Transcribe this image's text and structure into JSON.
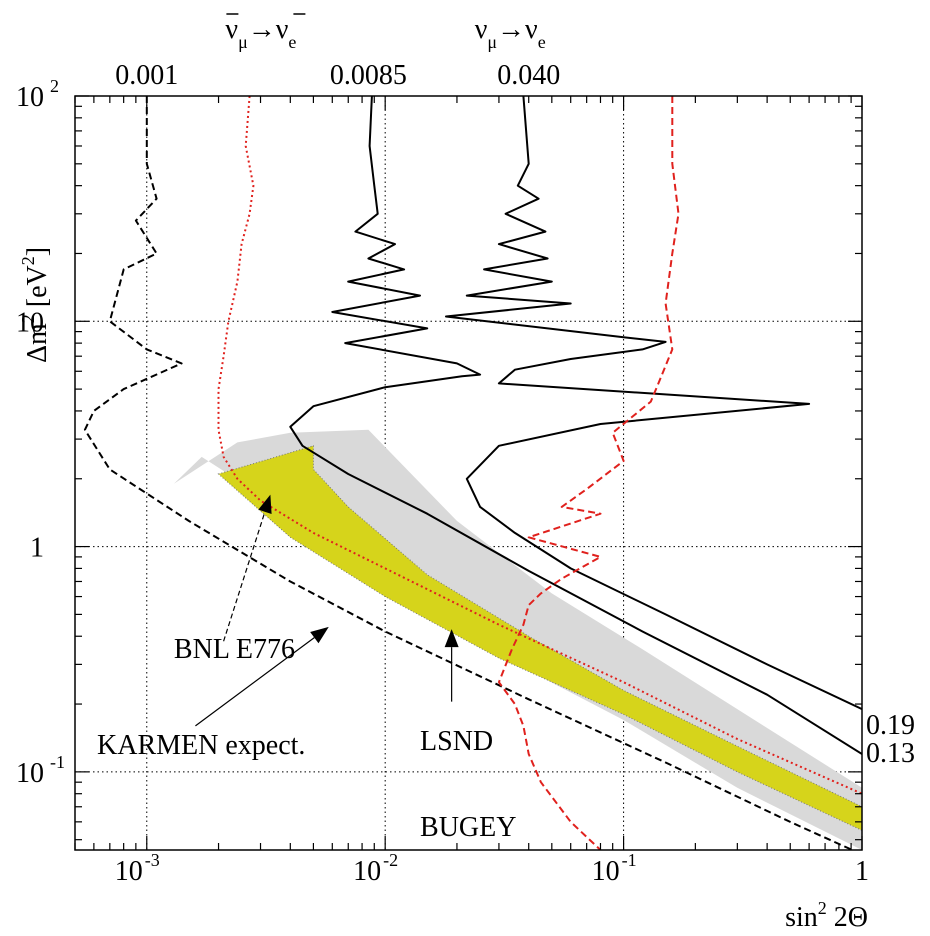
{
  "chart_data": {
    "type": "line",
    "xscale": "log",
    "yscale": "log",
    "xlim": [
      0.0005,
      1
    ],
    "ylim": [
      0.045,
      100
    ],
    "grid": true,
    "xlabel": {
      "base": "sin",
      "exp": "2",
      "rest": " 2Θ"
    },
    "ylabel": {
      "pre": "Δm",
      "exp": "2",
      "mid": " [eV",
      "exp2": "2",
      "post": "]"
    },
    "x_ticks": [
      {
        "value": 0.001,
        "base": "10",
        "exp": "-3"
      },
      {
        "value": 0.01,
        "base": "10",
        "exp": "-2"
      },
      {
        "value": 0.1,
        "base": "10",
        "exp": "-1"
      },
      {
        "value": 1,
        "base": "1",
        "exp": ""
      }
    ],
    "y_ticks": [
      {
        "value": 100,
        "base": "10",
        "exp": "2"
      },
      {
        "value": 10,
        "base": "10",
        "exp": ""
      },
      {
        "value": 1,
        "base": "1",
        "exp": ""
      },
      {
        "value": 0.1,
        "base": "10",
        "exp": "-1"
      }
    ],
    "top_labels": {
      "values": [
        {
          "x": 0.001,
          "text": "0.001"
        },
        {
          "x": 0.0085,
          "text": "0.0085"
        },
        {
          "x": 0.04,
          "text": "0.040"
        }
      ],
      "channels": [
        {
          "x": 0.0036,
          "nu": "ν",
          "sub1": "μ",
          "arrow": "→",
          "sub2": "e",
          "bar": true
        },
        {
          "x": 0.04,
          "nu": "ν",
          "sub1": "μ",
          "arrow": "→",
          "sub2": "e",
          "bar": false
        }
      ]
    },
    "right_labels": [
      {
        "y": 0.16,
        "text": "0.19"
      },
      {
        "y": 0.12,
        "text": "0.13"
      }
    ],
    "annotations": [
      {
        "text": "BNL E776",
        "x": 0.0013,
        "y": 0.32
      },
      {
        "text": "KARMEN expect.",
        "x": 0.0005,
        "y": 0.12
      },
      {
        "text": "LSND",
        "x": 0.014,
        "y": 0.125
      },
      {
        "text": "BUGEY",
        "x": 0.014,
        "y": 0.052
      }
    ],
    "series": [
      {
        "name": "LSND",
        "style": "region-90",
        "color": "#d9d9d9",
        "x": [
          0.0013,
          0.0024,
          0.004,
          0.0085,
          0.02,
          0.05,
          0.12,
          0.3,
          1,
          1,
          0.3,
          0.1,
          0.03,
          0.01,
          0.004,
          0.0017
        ],
        "y": [
          1.9,
          2.9,
          3.2,
          3.3,
          1.3,
          0.62,
          0.35,
          0.19,
          0.085,
          0.045,
          0.085,
          0.17,
          0.33,
          0.7,
          1.4,
          2.5
        ]
      },
      {
        "name": "LSND",
        "style": "region-99",
        "color": "#d6d41b",
        "x": [
          0.002,
          0.005,
          0.005,
          0.007,
          0.015,
          0.04,
          0.1,
          0.3,
          1,
          1,
          0.3,
          0.1,
          0.03,
          0.01,
          0.004
        ],
        "y": [
          2.1,
          2.8,
          2.2,
          1.5,
          0.75,
          0.4,
          0.23,
          0.13,
          0.07,
          0.055,
          0.1,
          0.18,
          0.32,
          0.6,
          1.1
        ]
      },
      {
        "name": "BNL E776",
        "style": "dotted",
        "color": "#e0211d",
        "x": [
          0.0027,
          0.0026,
          0.0028,
          0.0027,
          0.0025,
          0.0024,
          0.0022,
          0.0021,
          0.002,
          0.002,
          0.0021,
          0.0024,
          0.003,
          0.005,
          0.01,
          0.03,
          0.1,
          0.3,
          1
        ],
        "y": [
          100,
          60,
          40,
          30,
          22,
          15,
          10,
          7,
          5,
          3.3,
          2.5,
          2,
          1.6,
          1.15,
          0.8,
          0.45,
          0.25,
          0.14,
          0.08
        ]
      },
      {
        "name": "KARMEN expect.",
        "style": "dashed",
        "color": "#000000",
        "x": [
          0.001,
          0.001,
          0.0011,
          0.0009,
          0.0011,
          0.0008,
          0.0007,
          0.001,
          0.0014,
          0.0008,
          0.0006,
          0.00055,
          0.0007,
          0.0015,
          0.004,
          0.01,
          0.04,
          0.15,
          0.5,
          1
        ],
        "y": [
          100,
          50,
          35,
          28,
          20,
          17,
          10,
          7.5,
          6.5,
          5,
          4,
          3.3,
          2.2,
          1.3,
          0.7,
          0.42,
          0.21,
          0.11,
          0.06,
          0.043
        ]
      },
      {
        "name": "0.0085",
        "style": "solid",
        "color": "#000000",
        "x": [
          0.0088,
          0.0086,
          0.009,
          0.0093,
          0.0075,
          0.011,
          0.0085,
          0.012,
          0.007,
          0.014,
          0.006,
          0.015,
          0.0068,
          0.02,
          0.025,
          0.021,
          0.01,
          0.005,
          0.004,
          0.0045,
          0.007,
          0.015,
          0.04,
          0.12,
          0.4,
          1
        ],
        "y": [
          100,
          60,
          40,
          30,
          25,
          22,
          19,
          17,
          15,
          13,
          11,
          9.3,
          8,
          6.5,
          5.8,
          5.7,
          5.1,
          4.2,
          3.4,
          2.8,
          2.1,
          1.4,
          0.78,
          0.42,
          0.22,
          0.12
        ]
      },
      {
        "name": "0.040",
        "style": "solid",
        "color": "#000000",
        "x": [
          0.038,
          0.04,
          0.036,
          0.044,
          0.032,
          0.047,
          0.03,
          0.048,
          0.026,
          0.05,
          0.022,
          0.06,
          0.018,
          0.1,
          0.15,
          0.12,
          0.06,
          0.035,
          0.03,
          0.6,
          0.08,
          0.03,
          0.022,
          0.025,
          0.035,
          0.06,
          0.15,
          0.4,
          1
        ],
        "y": [
          100,
          50,
          40,
          35,
          30,
          25,
          22,
          19,
          17,
          15,
          13,
          12,
          10.5,
          8.5,
          8.1,
          7.5,
          6.8,
          6.1,
          5.3,
          4.3,
          3.5,
          2.8,
          2,
          1.5,
          1.15,
          0.8,
          0.5,
          0.3,
          0.19
        ]
      },
      {
        "name": "BUGEY",
        "style": "dashed",
        "color": "#e0211d",
        "x": [
          0.16,
          0.16,
          0.17,
          0.16,
          0.15,
          0.16,
          0.14,
          0.13,
          0.09,
          0.1,
          0.07,
          0.055,
          0.08,
          0.04,
          0.08,
          0.055,
          0.045,
          0.04,
          0.038,
          0.034,
          0.03,
          0.035,
          0.038,
          0.04,
          0.045,
          0.06,
          0.08
        ],
        "y": [
          100,
          50,
          30,
          20,
          12,
          7.5,
          5.3,
          4.4,
          3.2,
          2.4,
          1.8,
          1.5,
          1.4,
          1.1,
          0.9,
          0.72,
          0.62,
          0.55,
          0.45,
          0.35,
          0.25,
          0.2,
          0.16,
          0.12,
          0.09,
          0.06,
          0.045
        ]
      }
    ]
  }
}
